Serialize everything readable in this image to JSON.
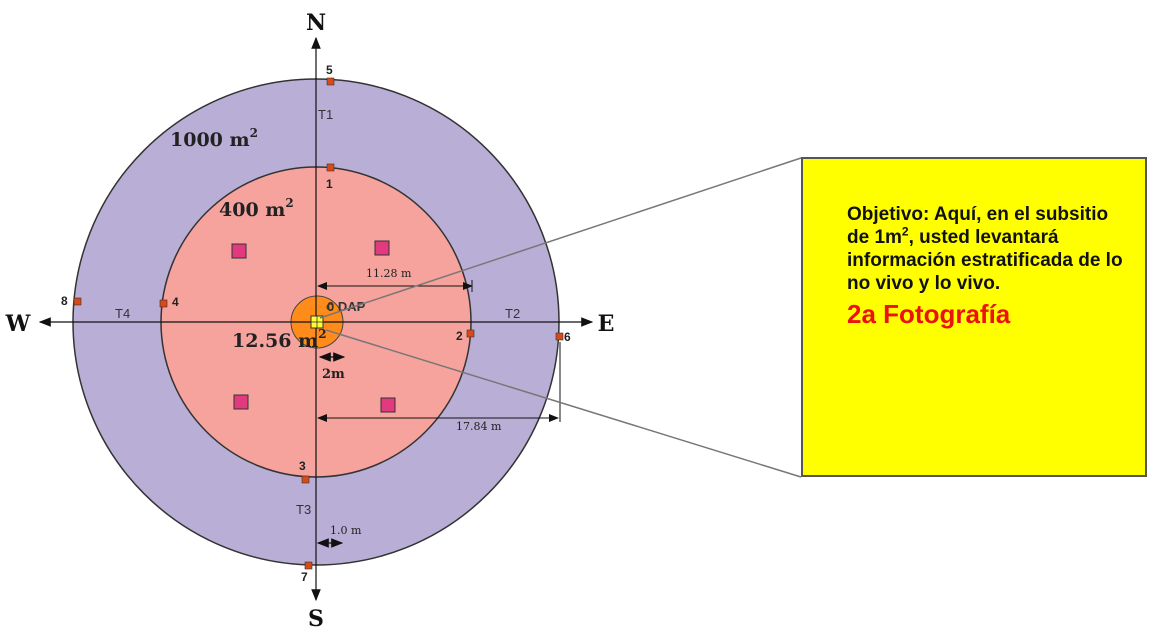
{
  "compass": {
    "north": "N",
    "south": "S",
    "east": "E",
    "west": "W"
  },
  "areas": {
    "outer_label": "1000 m",
    "inner_label": "400 m",
    "center_label": "12.56 m",
    "superscript": "2"
  },
  "markers": [
    {
      "label": "1"
    },
    {
      "label": "2"
    },
    {
      "label": "3"
    },
    {
      "label": "4"
    },
    {
      "label": "5"
    },
    {
      "label": "6"
    },
    {
      "label": "7"
    },
    {
      "label": "8"
    }
  ],
  "transects": {
    "t1": "T1",
    "t2": "T2",
    "t3": "T3",
    "t4": "T4"
  },
  "dimensions": {
    "radius_inner": "11.28 m",
    "radius_outer": "17.84 m",
    "center_radius": "2m",
    "offset": "1.0 m"
  },
  "center": {
    "dap_label": "0 DAP"
  },
  "callout": {
    "objective_pre": "Objetivo: Aquí, en el subsitio de 1m",
    "objective_sup": "2",
    "objective_post": ", usted levantará información estratificada de lo no vivo y lo vivo.",
    "photo": "2a Fotografía"
  },
  "colors": {
    "outer_ring": "#b9afd6",
    "inner_circle": "#f6a39d",
    "center_circle": "#ff8c1a",
    "subplot": "#e23a7e",
    "marker": "#d94a1a",
    "callout_bg": "#ffff00",
    "photo_text": "#ee1111"
  }
}
